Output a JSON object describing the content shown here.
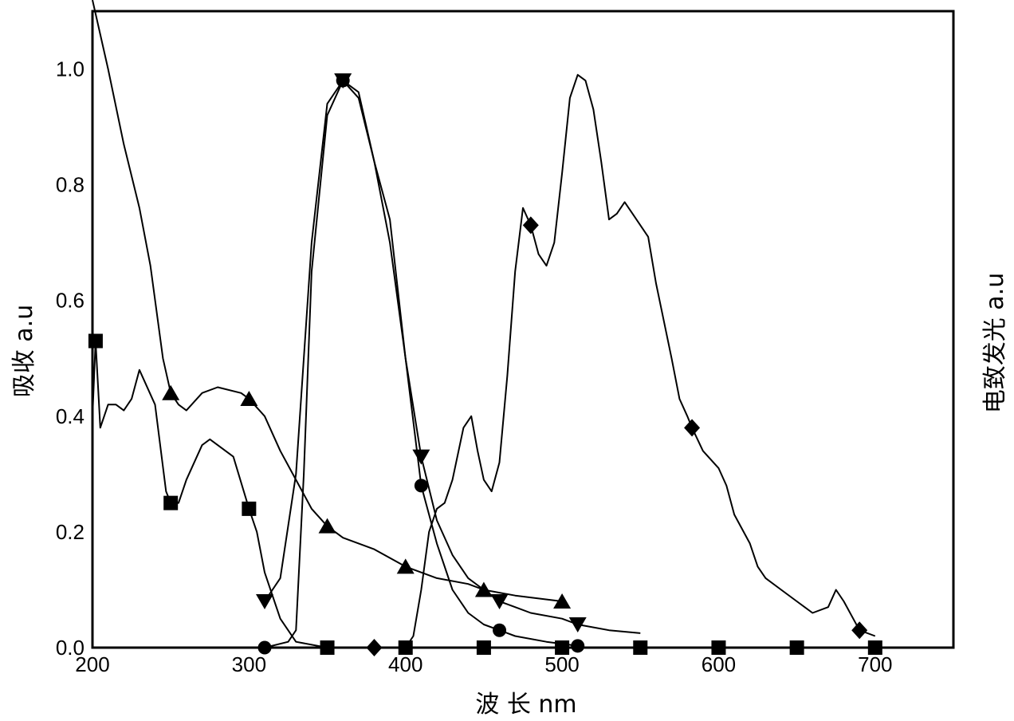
{
  "chart_data": {
    "type": "line",
    "xlabel": "波 长 nm",
    "ylabel": "吸收 a.u",
    "y2label": "电致发光 a.u",
    "xlim": [
      200,
      750
    ],
    "ylim": [
      0,
      1.1
    ],
    "xticks": [
      "200",
      "300",
      "400",
      "500",
      "600",
      "700"
    ],
    "yticks": [
      "0.0",
      "0.2",
      "0.4",
      "0.6",
      "0.8",
      "1.0"
    ],
    "grid": false,
    "series": [
      {
        "marker": "square",
        "points": [
          [
            200,
            0.4
          ],
          [
            202,
            0.53
          ],
          [
            205,
            0.38
          ],
          [
            210,
            0.42
          ],
          [
            215,
            0.42
          ],
          [
            220,
            0.41
          ],
          [
            225,
            0.43
          ],
          [
            230,
            0.48
          ],
          [
            240,
            0.42
          ],
          [
            247,
            0.27
          ],
          [
            250,
            0.25
          ],
          [
            255,
            0.25
          ],
          [
            260,
            0.29
          ],
          [
            270,
            0.35
          ],
          [
            275,
            0.36
          ],
          [
            285,
            0.34
          ],
          [
            290,
            0.33
          ],
          [
            300,
            0.24
          ],
          [
            305,
            0.2
          ],
          [
            310,
            0.13
          ],
          [
            320,
            0.05
          ],
          [
            330,
            0.01
          ],
          [
            350,
            0.0
          ],
          [
            400,
            0.0
          ],
          [
            450,
            0.0
          ],
          [
            500,
            0.0
          ],
          [
            550,
            0.0
          ],
          [
            600,
            0.0
          ],
          [
            650,
            0.0
          ],
          [
            700,
            0.0
          ]
        ],
        "markers_at": [
          202,
          250,
          300,
          350,
          400,
          450,
          500,
          550,
          600,
          650,
          700
        ]
      },
      {
        "marker": "triangle-up",
        "points": [
          [
            200,
            1.15
          ],
          [
            210,
            1.0
          ],
          [
            220,
            0.87
          ],
          [
            230,
            0.76
          ],
          [
            237,
            0.66
          ],
          [
            245,
            0.5
          ],
          [
            250,
            0.44
          ],
          [
            255,
            0.42
          ],
          [
            260,
            0.41
          ],
          [
            270,
            0.44
          ],
          [
            280,
            0.45
          ],
          [
            295,
            0.44
          ],
          [
            300,
            0.43
          ],
          [
            310,
            0.4
          ],
          [
            320,
            0.34
          ],
          [
            330,
            0.29
          ],
          [
            340,
            0.24
          ],
          [
            350,
            0.21
          ],
          [
            360,
            0.19
          ],
          [
            380,
            0.17
          ],
          [
            400,
            0.14
          ],
          [
            420,
            0.12
          ],
          [
            440,
            0.11
          ],
          [
            450,
            0.1
          ],
          [
            470,
            0.09
          ],
          [
            500,
            0.08
          ]
        ],
        "markers_at": [
          250,
          300,
          350,
          400,
          450,
          500
        ]
      },
      {
        "marker": "triangle-down",
        "points": [
          [
            310,
            0.08
          ],
          [
            320,
            0.12
          ],
          [
            330,
            0.3
          ],
          [
            340,
            0.7
          ],
          [
            350,
            0.94
          ],
          [
            360,
            0.98
          ],
          [
            370,
            0.96
          ],
          [
            380,
            0.84
          ],
          [
            390,
            0.74
          ],
          [
            400,
            0.5
          ],
          [
            410,
            0.33
          ],
          [
            420,
            0.22
          ],
          [
            430,
            0.16
          ],
          [
            440,
            0.12
          ],
          [
            450,
            0.1
          ],
          [
            460,
            0.08
          ],
          [
            470,
            0.07
          ],
          [
            480,
            0.06
          ],
          [
            500,
            0.05
          ],
          [
            510,
            0.04
          ],
          [
            530,
            0.03
          ],
          [
            550,
            0.025
          ]
        ],
        "markers_at": [
          310,
          360,
          410,
          460,
          510
        ]
      },
      {
        "marker": "circle",
        "points": [
          [
            310,
            0.0
          ],
          [
            325,
            0.01
          ],
          [
            330,
            0.03
          ],
          [
            335,
            0.3
          ],
          [
            340,
            0.65
          ],
          [
            350,
            0.92
          ],
          [
            360,
            0.98
          ],
          [
            370,
            0.95
          ],
          [
            380,
            0.84
          ],
          [
            390,
            0.7
          ],
          [
            400,
            0.5
          ],
          [
            410,
            0.28
          ],
          [
            420,
            0.18
          ],
          [
            430,
            0.1
          ],
          [
            440,
            0.06
          ],
          [
            450,
            0.04
          ],
          [
            460,
            0.03
          ],
          [
            470,
            0.02
          ],
          [
            490,
            0.01
          ],
          [
            510,
            0.003
          ]
        ],
        "markers_at": [
          310,
          360,
          410,
          460,
          510
        ]
      },
      {
        "marker": "diamond",
        "points": [
          [
            380,
            0.0
          ],
          [
            400,
            0.0
          ],
          [
            405,
            0.02
          ],
          [
            410,
            0.1
          ],
          [
            415,
            0.2
          ],
          [
            420,
            0.24
          ],
          [
            425,
            0.25
          ],
          [
            430,
            0.29
          ],
          [
            437,
            0.38
          ],
          [
            442,
            0.4
          ],
          [
            446,
            0.34
          ],
          [
            450,
            0.29
          ],
          [
            455,
            0.27
          ],
          [
            460,
            0.32
          ],
          [
            465,
            0.47
          ],
          [
            470,
            0.65
          ],
          [
            475,
            0.76
          ],
          [
            480,
            0.73
          ],
          [
            485,
            0.68
          ],
          [
            490,
            0.66
          ],
          [
            495,
            0.7
          ],
          [
            500,
            0.82
          ],
          [
            505,
            0.95
          ],
          [
            510,
            0.99
          ],
          [
            515,
            0.98
          ],
          [
            520,
            0.93
          ],
          [
            525,
            0.84
          ],
          [
            530,
            0.74
          ],
          [
            535,
            0.75
          ],
          [
            540,
            0.77
          ],
          [
            545,
            0.75
          ],
          [
            550,
            0.73
          ],
          [
            555,
            0.71
          ],
          [
            560,
            0.63
          ],
          [
            570,
            0.5
          ],
          [
            575,
            0.43
          ],
          [
            580,
            0.4
          ],
          [
            583,
            0.38
          ],
          [
            590,
            0.34
          ],
          [
            600,
            0.31
          ],
          [
            605,
            0.28
          ],
          [
            610,
            0.23
          ],
          [
            620,
            0.18
          ],
          [
            625,
            0.14
          ],
          [
            630,
            0.12
          ],
          [
            640,
            0.1
          ],
          [
            650,
            0.08
          ],
          [
            660,
            0.06
          ],
          [
            670,
            0.07
          ],
          [
            675,
            0.1
          ],
          [
            680,
            0.08
          ],
          [
            690,
            0.03
          ],
          [
            700,
            0.02
          ]
        ],
        "markers_at": [
          380,
          480,
          583,
          690
        ]
      }
    ]
  }
}
